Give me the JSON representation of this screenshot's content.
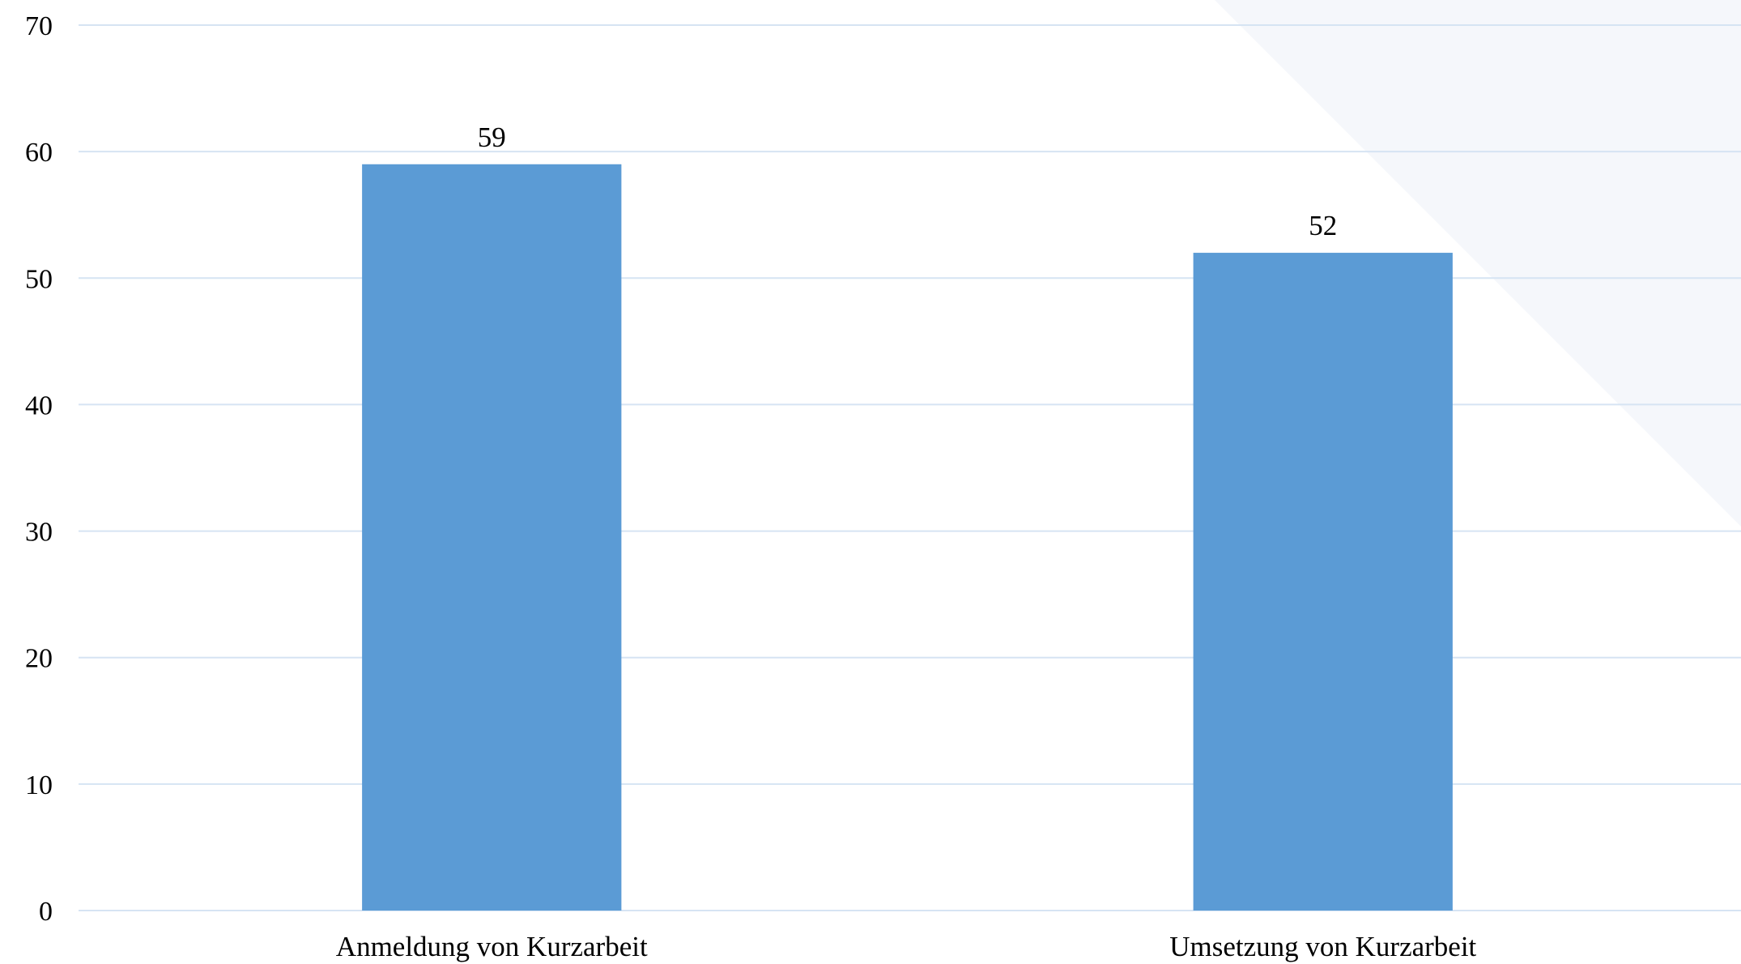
{
  "chart_data": {
    "type": "bar",
    "categories": [
      "Anmeldung von Kurzarbeit",
      "Umsetzung von Kurzarbeit"
    ],
    "values": [
      59,
      52
    ],
    "data_labels": [
      "59",
      "52"
    ],
    "title": "",
    "xlabel": "",
    "ylabel": "",
    "ylim": [
      0,
      70
    ],
    "yticks": [
      "0",
      "10",
      "20",
      "30",
      "40",
      "50",
      "60",
      "70"
    ],
    "grid": true,
    "legend": "none",
    "colors": {
      "bar": "#5b9bd5",
      "grid": "#d6e4f3",
      "background_shape": "#f5f7fb"
    }
  }
}
